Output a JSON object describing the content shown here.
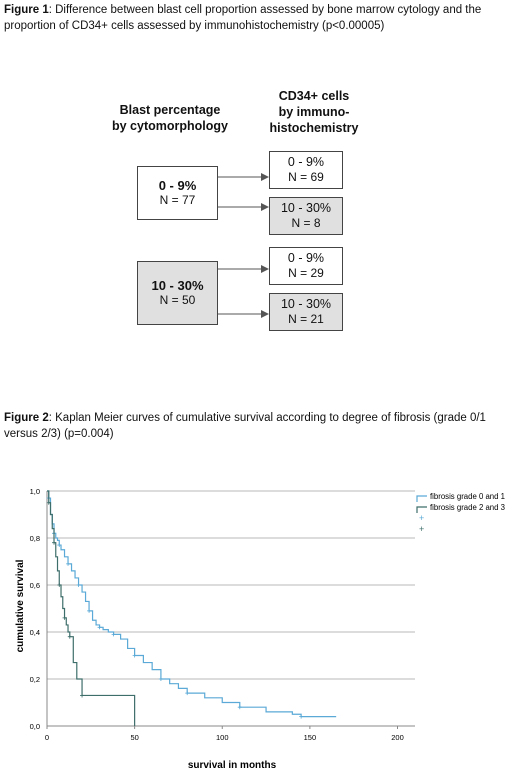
{
  "figure1": {
    "label": "Figure 1",
    "text": ": Difference between blast cell proportion assessed by bone marrow cytology and the proportion of CD34+ cells assessed by immunohistochemistry (p<0.00005)",
    "left_header_line1": "Blast percentage",
    "left_header_line2": "by cytomorphology",
    "right_header_line1": "CD34+ cells",
    "right_header_line2": "by immuno-",
    "right_header_line3": "histochemistry",
    "groups": [
      {
        "range": "0 - 9%",
        "n": "N = 77",
        "subgroups": [
          {
            "range": "0 - 9%",
            "n": "N = 69"
          },
          {
            "range": "10 - 30%",
            "n": "N = 8"
          }
        ]
      },
      {
        "range": "10 - 30%",
        "n": "N = 50",
        "subgroups": [
          {
            "range": "0 - 9%",
            "n": "N = 29"
          },
          {
            "range": "10 - 30%",
            "n": "N = 21"
          }
        ]
      }
    ]
  },
  "figure2": {
    "label": "Figure 2",
    "text": ": Kaplan Meier curves of cumulative survival according to degree of fibrosis (grade 0/1 versus 2/3) (p=0.004)"
  },
  "chart_data": {
    "type": "line",
    "title": "",
    "xlabel": "survival in months",
    "ylabel": "cumulative survival",
    "xlim": [
      0,
      200
    ],
    "ylim": [
      0,
      1
    ],
    "x_ticks": [
      "0",
      "50",
      "100",
      "150",
      "200"
    ],
    "y_ticks": [
      "0,0",
      "0,2",
      "0,4",
      "0,6",
      "0,8",
      "1,0"
    ],
    "grid": "horizontal",
    "legend_position": "top-right",
    "legend_extra_entries": [
      "+",
      "+"
    ],
    "colors": {
      "series1": "#5aa9d6",
      "series2": "#3e6e6a",
      "grid": "#b8b8b8"
    },
    "series": [
      {
        "name": "fibrosis grade 0 and 1",
        "x": [
          0,
          1,
          2,
          3,
          4,
          5,
          6,
          7,
          8,
          10,
          12,
          14,
          16,
          18,
          20,
          22,
          24,
          26,
          28,
          30,
          32,
          35,
          38,
          42,
          46,
          50,
          55,
          60,
          65,
          70,
          75,
          80,
          90,
          100,
          110,
          125,
          140,
          145,
          165
        ],
        "y": [
          1.0,
          0.97,
          0.9,
          0.86,
          0.82,
          0.8,
          0.79,
          0.77,
          0.75,
          0.72,
          0.69,
          0.66,
          0.63,
          0.6,
          0.57,
          0.53,
          0.49,
          0.45,
          0.43,
          0.42,
          0.41,
          0.4,
          0.39,
          0.37,
          0.33,
          0.3,
          0.27,
          0.24,
          0.2,
          0.18,
          0.16,
          0.14,
          0.12,
          0.1,
          0.08,
          0.06,
          0.05,
          0.04,
          0.04
        ]
      },
      {
        "name": "fibrosis grade 2 and 3",
        "x": [
          0,
          1,
          2,
          3,
          4,
          5,
          6,
          7,
          8,
          9,
          10,
          11,
          12,
          13,
          15,
          17,
          20,
          48,
          50
        ],
        "y": [
          1.0,
          0.95,
          0.9,
          0.84,
          0.78,
          0.72,
          0.66,
          0.6,
          0.55,
          0.5,
          0.46,
          0.43,
          0.4,
          0.38,
          0.27,
          0.2,
          0.13,
          0.13,
          0.0
        ]
      }
    ]
  }
}
